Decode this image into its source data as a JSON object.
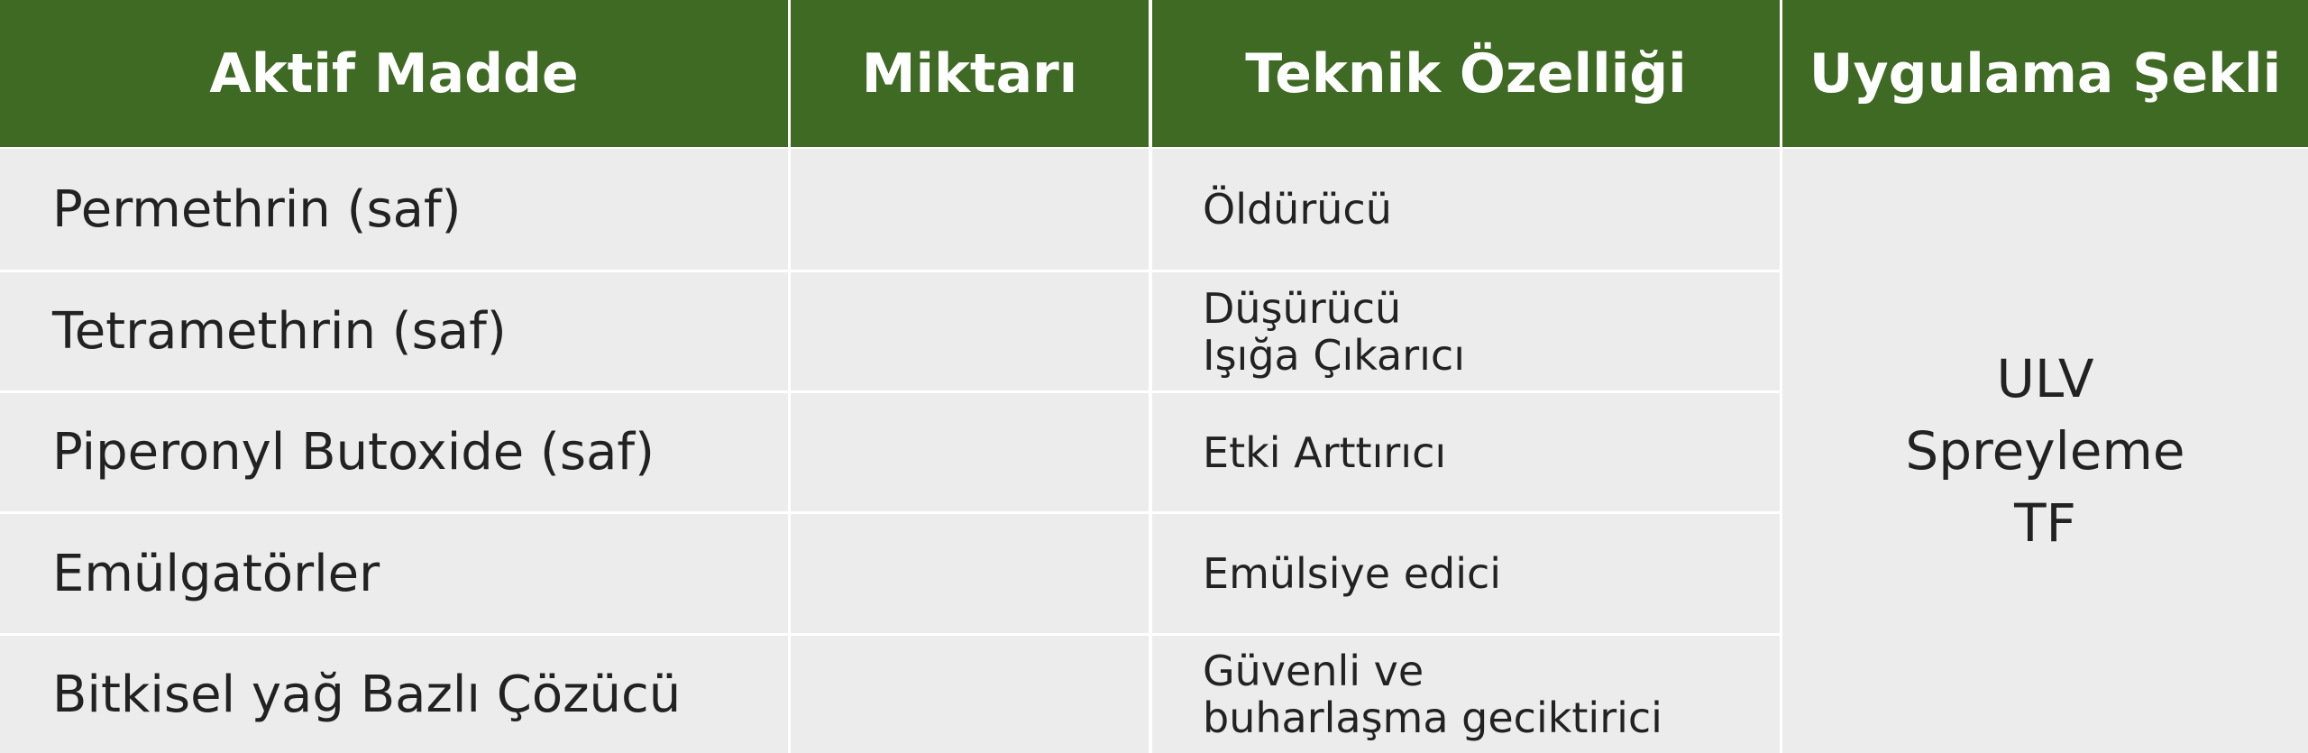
{
  "table": {
    "header": [
      "Aktif Madde",
      "Miktarı",
      "Teknik Özelliği",
      "Uygulama Şekli"
    ],
    "rows": [
      {
        "name": "Permethrin (saf)",
        "feature": [
          "Öldürücü"
        ]
      },
      {
        "name": "Tetramethrin (saf)",
        "feature": [
          "Düşürücü",
          "Işığa Çıkarıcı"
        ]
      },
      {
        "name": "Piperonyl Butoxide (saf)",
        "feature": [
          "Etki Arttırıcı"
        ]
      },
      {
        "name": "Emülgatörler",
        "feature": [
          "Emülsiye edici"
        ]
      },
      {
        "name": "Bitkisel yağ Bazlı Çözücü",
        "feature": [
          "Güvenli ve",
          "buharlaşma geciktirici"
        ]
      }
    ],
    "application": [
      "ULV",
      "Spreyleme",
      "TF"
    ]
  }
}
